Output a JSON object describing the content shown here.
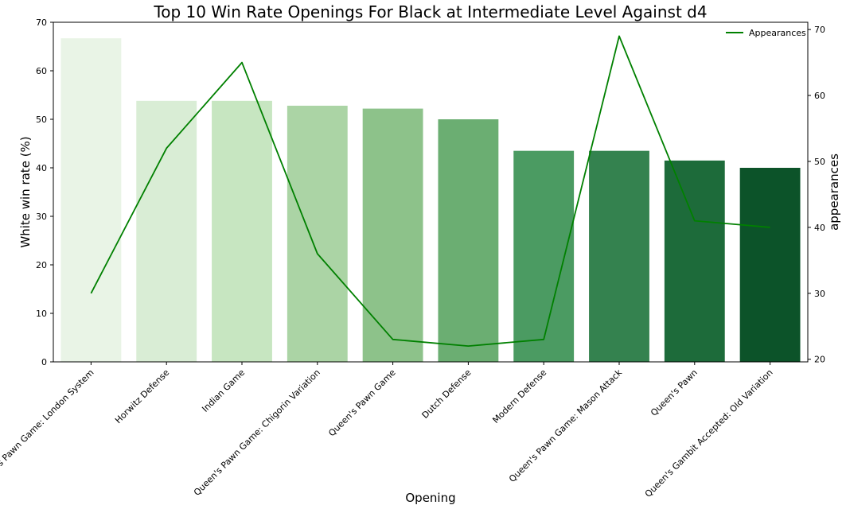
{
  "chart_data": {
    "type": "bar",
    "title": "Top 10 Win Rate Openings For Black at Intermediate Level Against d4",
    "xlabel": "Opening",
    "ylabel": "White win rate (%)",
    "y2label": "appearances",
    "categories": [
      "Queen's Pawn Game: London System",
      "Horwitz Defense",
      "Indian Game",
      "Queen's Pawn Game: Chigorin Variation",
      "Queen's Pawn Game",
      "Dutch Defense",
      "Modern Defense",
      "Queen's Pawn Game: Mason Attack",
      "Queen's Pawn",
      "Queen's Gambit Accepted: Old Variation"
    ],
    "values": [
      66.7,
      53.8,
      53.8,
      52.8,
      52.2,
      50.0,
      43.5,
      43.5,
      41.5,
      40.0
    ],
    "bar_colors": [
      "#e9f4e6",
      "#d9edd5",
      "#c7e6c1",
      "#abd4a5",
      "#8dc28a",
      "#6bae72",
      "#4b9b62",
      "#34824f",
      "#1d6b3a",
      "#0c5329"
    ],
    "ylim": [
      0,
      70
    ],
    "yticks": [
      0,
      10,
      20,
      30,
      40,
      50,
      60,
      70
    ],
    "line_series": {
      "name": "Appearances",
      "color": "#008000",
      "values": [
        30,
        52,
        65,
        36,
        23,
        22,
        23,
        69,
        41,
        40
      ]
    },
    "y2lim": [
      19.6,
      71.1
    ],
    "y2ticks": [
      20,
      30,
      40,
      50,
      60,
      70
    ],
    "legend_position": "top-right",
    "grid": false
  }
}
